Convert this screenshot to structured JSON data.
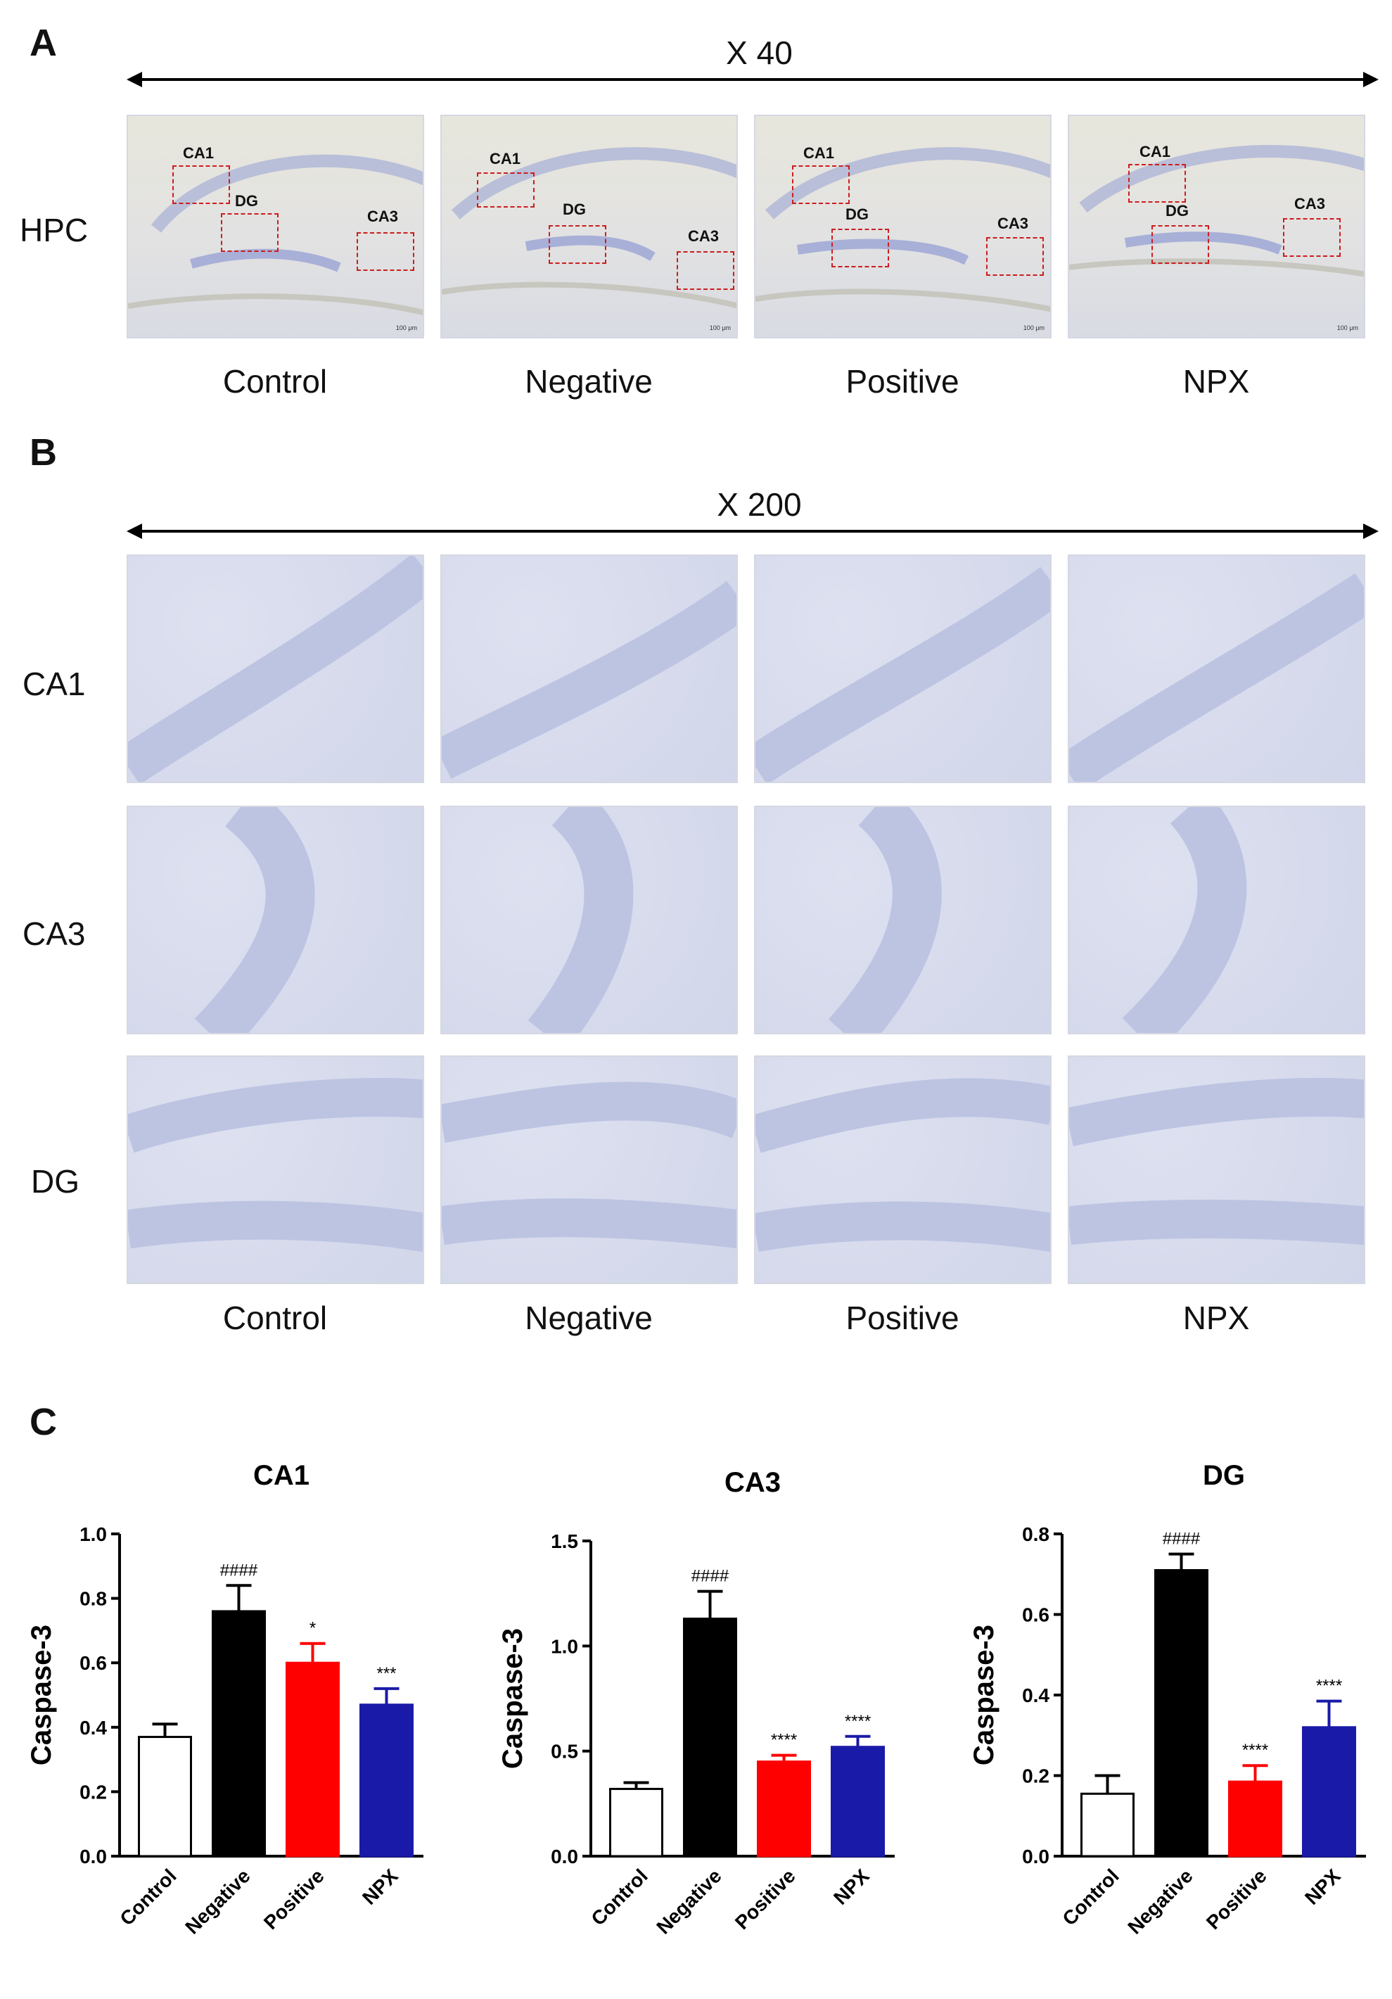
{
  "panels": {
    "a": "A",
    "b": "B",
    "c": "C"
  },
  "panel_a": {
    "magnification": "X 40",
    "row_label": "HPC",
    "columns": [
      "Control",
      "Negative",
      "Positive",
      "NPX"
    ],
    "roi_labels": [
      "CA1",
      "DG",
      "CA3"
    ],
    "scale_text": "100 μm"
  },
  "panel_b": {
    "magnification": "X 200",
    "row_labels": [
      "CA1",
      "CA3",
      "DG"
    ],
    "columns": [
      "Control",
      "Negative",
      "Positive",
      "NPX"
    ]
  },
  "colors": {
    "control": "#ffffff",
    "negative": "#000000",
    "positive": "#ff0000",
    "npx": "#1a1aa8",
    "roi": "#cc1d1d"
  },
  "chart_data": [
    {
      "type": "bar",
      "title": "CA1",
      "ylabel": "Caspase-3",
      "categories": [
        "Control",
        "Negative",
        "Positive",
        "NPX"
      ],
      "values": [
        0.37,
        0.76,
        0.6,
        0.47
      ],
      "errors": [
        0.04,
        0.08,
        0.06,
        0.05
      ],
      "annotations": [
        "",
        "####",
        "*",
        "***"
      ],
      "ylim": [
        0,
        1.0
      ],
      "yticks": [
        "0.0",
        "0.2",
        "0.4",
        "0.6",
        "0.8",
        "1.0"
      ],
      "ytick_values": [
        0,
        0.2,
        0.4,
        0.6,
        0.8,
        1.0
      ],
      "fill_colors": [
        "#ffffff",
        "#000000",
        "#ff0000",
        "#1a1aa8"
      ]
    },
    {
      "type": "bar",
      "title": "CA3",
      "ylabel": "Caspase-3",
      "categories": [
        "Control",
        "Negative",
        "Positive",
        "NPX"
      ],
      "values": [
        0.32,
        1.13,
        0.45,
        0.52
      ],
      "errors": [
        0.03,
        0.13,
        0.03,
        0.05
      ],
      "annotations": [
        "",
        "####",
        "****",
        "****"
      ],
      "ylim": [
        0,
        1.5
      ],
      "yticks": [
        "0.0",
        "0.5",
        "1.0",
        "1.5"
      ],
      "ytick_values": [
        0,
        0.5,
        1.0,
        1.5
      ],
      "fill_colors": [
        "#ffffff",
        "#000000",
        "#ff0000",
        "#1a1aa8"
      ]
    },
    {
      "type": "bar",
      "title": "DG",
      "ylabel": "Caspase-3",
      "categories": [
        "Control",
        "Negative",
        "Positive",
        "NPX"
      ],
      "values": [
        0.155,
        0.71,
        0.185,
        0.32
      ],
      "errors": [
        0.045,
        0.04,
        0.04,
        0.065
      ],
      "annotations": [
        "",
        "####",
        "****",
        "****"
      ],
      "ylim": [
        0,
        0.8
      ],
      "yticks": [
        "0.0",
        "0.2",
        "0.4",
        "0.6",
        "0.8"
      ],
      "ytick_values": [
        0,
        0.2,
        0.4,
        0.6,
        0.8
      ],
      "fill_colors": [
        "#ffffff",
        "#000000",
        "#ff0000",
        "#1a1aa8"
      ]
    }
  ]
}
